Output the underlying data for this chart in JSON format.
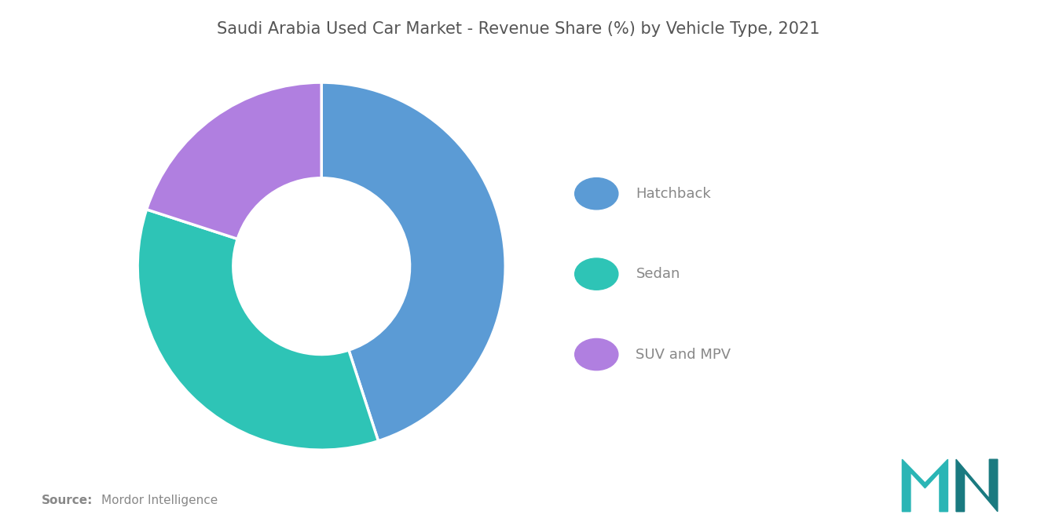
{
  "title": "Saudi Arabia Used Car Market - Revenue Share (%) by Vehicle Type, 2021",
  "slices": [
    {
      "label": "Hatchback",
      "value": 45,
      "color": "#5B9BD5"
    },
    {
      "label": "Sedan",
      "value": 35,
      "color": "#2EC4B6"
    },
    {
      "label": "SUV and MPV",
      "value": 20,
      "color": "#B07FE0"
    }
  ],
  "background_color": "#ffffff",
  "title_fontsize": 15,
  "legend_fontsize": 13,
  "source_bold": "Source:",
  "source_normal": "Mordor Intelligence",
  "text_color": "#888888",
  "title_color": "#555555",
  "donut_width": 0.52,
  "start_angle": 90
}
